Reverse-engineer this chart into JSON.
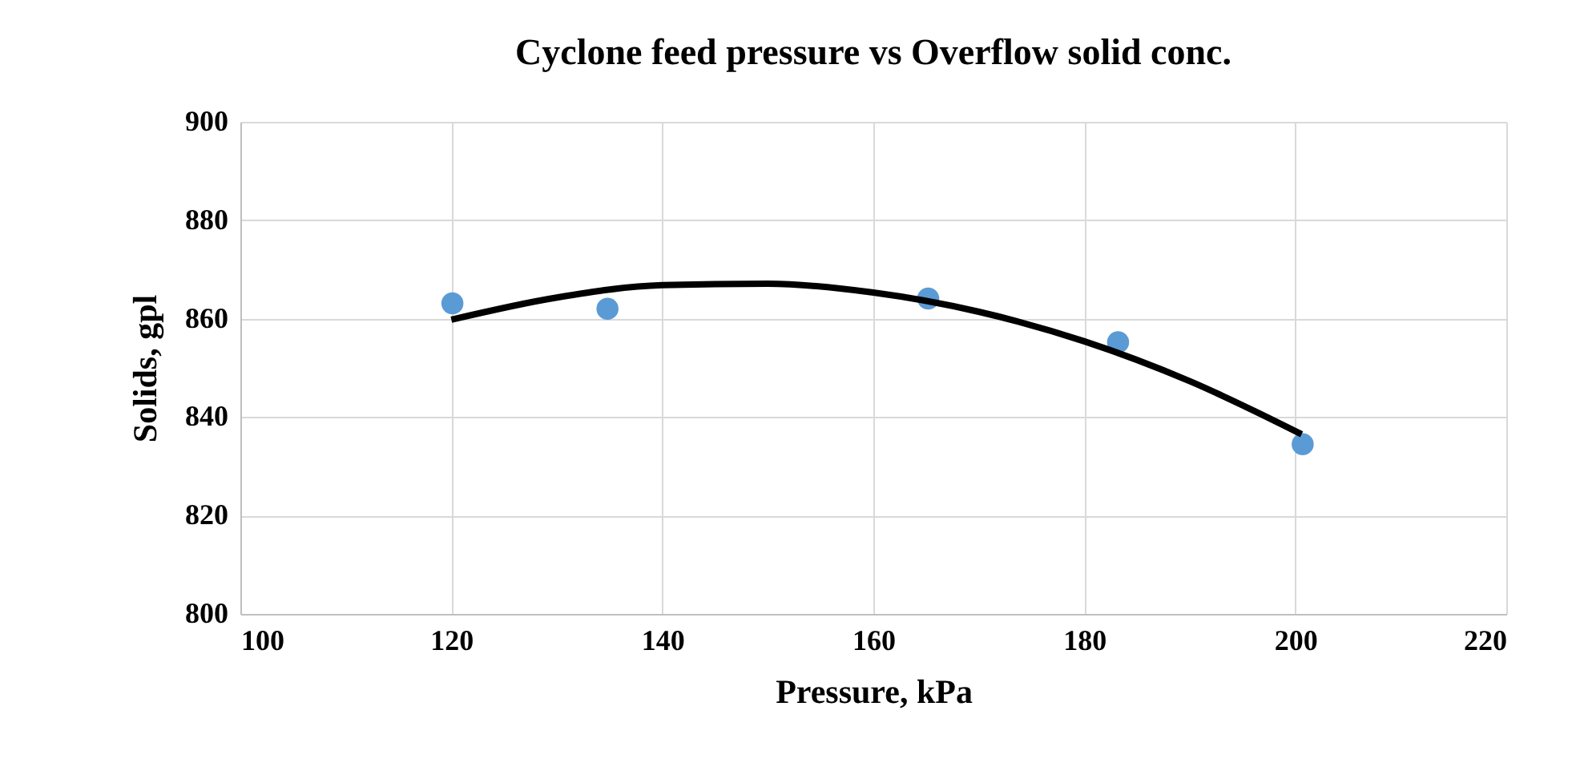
{
  "chart_data": {
    "type": "scatter",
    "title": "Cyclone feed pressure vs Overflow solid conc.",
    "xlabel": "Pressure, kPa",
    "ylabel": "Solids, gpl",
    "xlim": [
      100,
      220
    ],
    "xticks": [
      100,
      120,
      140,
      160,
      180,
      200,
      220
    ],
    "ylim": [
      800,
      900
    ],
    "yticks": [
      800,
      820,
      840,
      860,
      880,
      900
    ],
    "grid": true,
    "series": [
      {
        "color": "#5b9bd5",
        "marker": "circle",
        "x": [
          120.1,
          134.8,
          165.2,
          183.2,
          200.7
        ],
        "values": [
          863.1,
          862.0,
          864.1,
          855.2,
          834.5
        ]
      },
      {
        "type": "line",
        "color": "#000000",
        "x": [
          120,
          130,
          140,
          150,
          160,
          170,
          180,
          190,
          200.6
        ],
        "values": [
          859.8,
          864.3,
          866.8,
          867.1,
          865.3,
          861.4,
          855.4,
          847.3,
          836.5
        ]
      }
    ]
  }
}
